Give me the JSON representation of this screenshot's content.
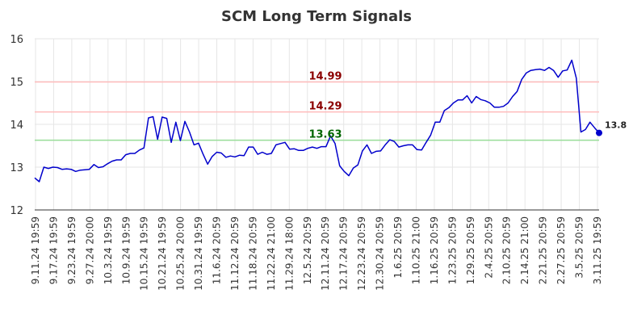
{
  "chart_data": {
    "type": "line",
    "title": "SCM Long Term Signals",
    "xlabel": "",
    "ylabel": "",
    "ylim": [
      12,
      16
    ],
    "yticks": [
      12,
      13,
      14,
      15,
      16
    ],
    "grid": true,
    "x_tick_labels": [
      "9.11.24 19:59",
      "9.17.24 19:59",
      "9.23.24 19:59",
      "9.27.24 20:00",
      "10.3.24 19:59",
      "10.9.24 19:59",
      "10.15.24 19:59",
      "10.21.24 19:59",
      "10.25.24 20:00",
      "10.31.24 19:59",
      "11.6.24 20:59",
      "11.12.24 20:59",
      "11.18.24 20:59",
      "11.22.24 21:00",
      "11.29.24 18:00",
      "12.5.24 20:59",
      "12.11.24 20:59",
      "12.17.24 20:59",
      "12.23.24 20:59",
      "12.30.24 20:59",
      "1.6.25 20:59",
      "1.10.25 21:00",
      "1.16.25 20:59",
      "1.23.25 20:59",
      "1.29.25 20:59",
      "2.4.25 20:59",
      "2.10.25 20:59",
      "2.14.25 21:00",
      "2.21.25 20:59",
      "2.27.25 20:59",
      "3.5.25 20:59",
      "3.11.25 19:59"
    ],
    "reference_lines": [
      {
        "value": 14.99,
        "label": "14.99",
        "line_color": "#ffbbbb",
        "text_color": "#8b0000"
      },
      {
        "value": 14.29,
        "label": "14.29",
        "line_color": "#ffbbbb",
        "text_color": "#8b0000"
      },
      {
        "value": 13.63,
        "label": "13.63",
        "line_color": "#99dd99",
        "text_color": "#006400"
      }
    ],
    "last_value_label": "13.8",
    "series": [
      {
        "color": "#0000cc",
        "values": [
          12.75,
          12.66,
          13.0,
          12.97,
          13.0,
          12.99,
          12.95,
          12.96,
          12.95,
          12.9,
          12.93,
          12.94,
          12.95,
          13.06,
          12.99,
          13.01,
          13.08,
          13.14,
          13.17,
          13.17,
          13.29,
          13.32,
          13.32,
          13.4,
          13.45,
          14.15,
          14.18,
          13.65,
          14.17,
          14.14,
          13.58,
          14.05,
          13.62,
          14.07,
          13.82,
          13.52,
          13.56,
          13.3,
          13.07,
          13.25,
          13.35,
          13.33,
          13.23,
          13.26,
          13.24,
          13.28,
          13.27,
          13.47,
          13.47,
          13.3,
          13.35,
          13.3,
          13.32,
          13.52,
          13.55,
          13.58,
          13.42,
          13.43,
          13.39,
          13.39,
          13.44,
          13.47,
          13.44,
          13.48,
          13.48,
          13.73,
          13.55,
          13.03,
          12.9,
          12.8,
          12.98,
          13.05,
          13.38,
          13.52,
          13.32,
          13.37,
          13.38,
          13.52,
          13.64,
          13.6,
          13.47,
          13.5,
          13.52,
          13.52,
          13.41,
          13.4,
          13.58,
          13.75,
          14.05,
          14.05,
          14.32,
          14.39,
          14.5,
          14.57,
          14.57,
          14.67,
          14.5,
          14.65,
          14.58,
          14.55,
          14.5,
          14.4,
          14.4,
          14.42,
          14.5,
          14.65,
          14.77,
          15.05,
          15.2,
          15.26,
          15.28,
          15.29,
          15.26,
          15.33,
          15.26,
          15.1,
          15.25,
          15.27,
          15.5,
          15.08,
          13.82,
          13.88,
          14.05,
          13.92,
          13.8
        ]
      }
    ]
  }
}
